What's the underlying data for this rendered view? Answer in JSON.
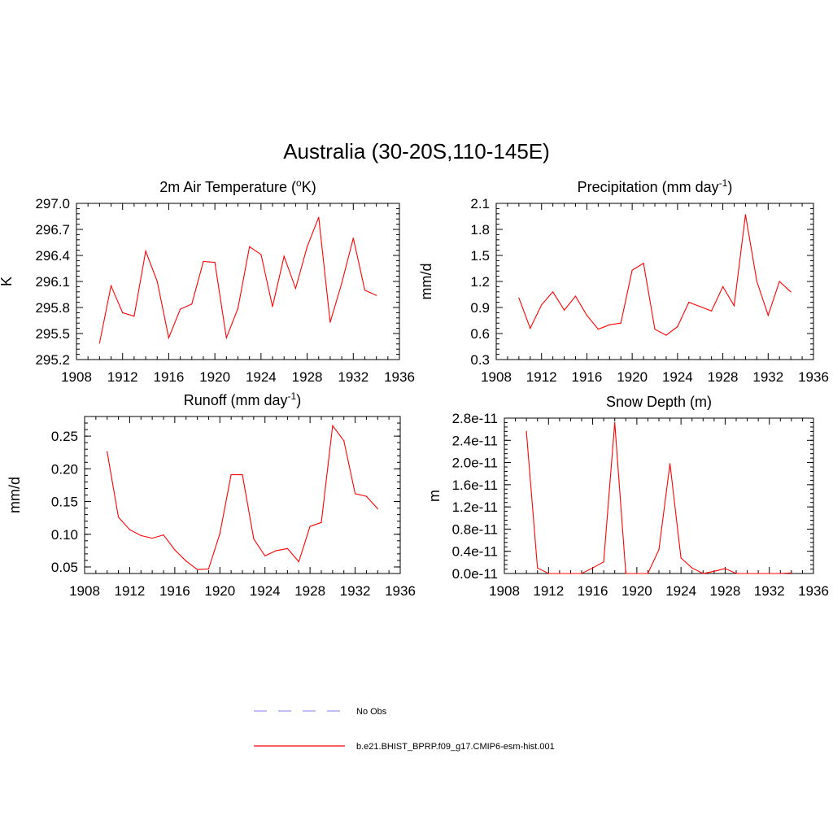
{
  "title": "Australia (30-20S,110-145E)",
  "colors": {
    "model": "#ff0000",
    "obs": "#9999ee",
    "frame": "#000000"
  },
  "legend": [
    {
      "label": "No Obs",
      "style": "dashed",
      "color": "#9999ee"
    },
    {
      "label": "b.e21.BHIST_BPRP.f09_g17.CMIP6-esm-hist.001",
      "style": "solid",
      "color": "#ff0000"
    }
  ],
  "chart_data": [
    {
      "type": "line",
      "title": "2m Air Temperature (",
      "title_sup": "o",
      "title_after": "K)",
      "ylabel": "K",
      "xlim": [
        1908,
        1936
      ],
      "ylim": [
        295.2,
        297.0
      ],
      "xticks": [
        "1908",
        "1912",
        "1916",
        "1920",
        "1924",
        "1928",
        "1932",
        "1936"
      ],
      "yticks": [
        "295.2",
        "295.5",
        "295.8",
        "296.1",
        "296.4",
        "296.7",
        "297.0"
      ],
      "x": [
        1910,
        1911,
        1912,
        1913,
        1914,
        1915,
        1916,
        1917,
        1918,
        1919,
        1920,
        1921,
        1922,
        1923,
        1924,
        1925,
        1926,
        1927,
        1928,
        1929,
        1930,
        1931,
        1932,
        1933,
        1934
      ],
      "series": [
        {
          "values": [
            295.39,
            296.05,
            295.74,
            295.7,
            296.45,
            296.1,
            295.45,
            295.78,
            295.84,
            296.33,
            296.32,
            295.45,
            295.79,
            296.5,
            296.41,
            295.81,
            296.39,
            296.02,
            296.5,
            296.84,
            295.63,
            296.08,
            296.6,
            296.0,
            295.94
          ]
        }
      ]
    },
    {
      "type": "line",
      "title": "Precipitation (mm day",
      "title_sup": "-1",
      "title_after": ")",
      "ylabel": "mm/d",
      "xlim": [
        1908,
        1936
      ],
      "ylim": [
        0.3,
        2.1
      ],
      "xticks": [
        "1908",
        "1912",
        "1916",
        "1920",
        "1924",
        "1928",
        "1932",
        "1936"
      ],
      "yticks": [
        "0.3",
        "0.6",
        "0.9",
        "1.2",
        "1.5",
        "1.8",
        "2.1"
      ],
      "x": [
        1910,
        1911,
        1912,
        1913,
        1914,
        1915,
        1916,
        1917,
        1918,
        1919,
        1920,
        1921,
        1922,
        1923,
        1924,
        1925,
        1926,
        1927,
        1928,
        1929,
        1930,
        1931,
        1932,
        1933,
        1934
      ],
      "series": [
        {
          "values": [
            1.01,
            0.66,
            0.93,
            1.08,
            0.87,
            1.03,
            0.81,
            0.65,
            0.7,
            0.72,
            1.33,
            1.41,
            0.65,
            0.58,
            0.68,
            0.96,
            0.91,
            0.86,
            1.14,
            0.92,
            1.97,
            1.2,
            0.81,
            1.2,
            1.08
          ]
        }
      ]
    },
    {
      "type": "line",
      "title": "Runoff (mm day",
      "title_sup": "-1",
      "title_after": ")",
      "ylabel": "mm/d",
      "xlim": [
        1908,
        1936
      ],
      "ylim": [
        0.04,
        0.28
      ],
      "xticks": [
        "1908",
        "1912",
        "1916",
        "1920",
        "1924",
        "1928",
        "1932",
        "1936"
      ],
      "yticks": [
        "0.05",
        "0.10",
        "0.15",
        "0.20",
        "0.25"
      ],
      "ytick_values": [
        0.05,
        0.1,
        0.15,
        0.2,
        0.25
      ],
      "x": [
        1910,
        1911,
        1912,
        1913,
        1914,
        1915,
        1916,
        1917,
        1918,
        1919,
        1920,
        1921,
        1922,
        1923,
        1924,
        1925,
        1926,
        1927,
        1928,
        1929,
        1930,
        1931,
        1932,
        1933,
        1934
      ],
      "series": [
        {
          "values": [
            0.226,
            0.126,
            0.107,
            0.098,
            0.094,
            0.099,
            0.076,
            0.059,
            0.046,
            0.047,
            0.101,
            0.191,
            0.191,
            0.093,
            0.067,
            0.075,
            0.078,
            0.058,
            0.112,
            0.118,
            0.266,
            0.243,
            0.162,
            0.158,
            0.139
          ]
        }
      ]
    },
    {
      "type": "line",
      "title": "Snow Depth (m)",
      "title_sup": "",
      "title_after": "",
      "ylabel": "m",
      "xlim": [
        1908,
        1936
      ],
      "ylim": [
        0.0,
        2.8e-11
      ],
      "xticks": [
        "1908",
        "1912",
        "1916",
        "1920",
        "1924",
        "1928",
        "1932",
        "1936"
      ],
      "yticks": [
        "0.0e-11",
        "0.4e-11",
        "0.8e-11",
        "1.2e-11",
        "1.6e-11",
        "2.0e-11",
        "2.4e-11",
        "2.8e-11"
      ],
      "x": [
        1910,
        1911,
        1912,
        1913,
        1914,
        1915,
        1916,
        1917,
        1918,
        1919,
        1920,
        1921,
        1922,
        1923,
        1924,
        1925,
        1926,
        1927,
        1928,
        1929,
        1930,
        1931,
        1932,
        1933,
        1934
      ],
      "series": [
        {
          "values": [
            2.56e-11,
            1e-12,
            0,
            0,
            0,
            0,
            1e-12,
            2.1e-12,
            2.72e-11,
            0,
            0,
            0,
            4.3e-12,
            1.98e-11,
            2.8e-12,
            1e-12,
            0,
            4e-13,
            9e-13,
            0,
            0,
            0,
            0,
            0,
            1e-13
          ]
        }
      ]
    }
  ]
}
